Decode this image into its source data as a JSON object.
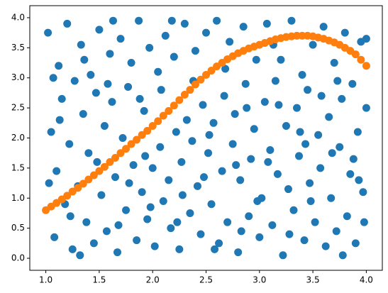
{
  "chart_data": {
    "type": "scatter",
    "xlim": [
      0.85,
      4.15
    ],
    "ylim": [
      -0.2,
      4.2
    ],
    "xticks": [
      {
        "value": 1,
        "label": "1.0"
      },
      1.5,
      {
        "value": 2,
        "label": "2.0"
      },
      2.5,
      {
        "value": 3,
        "label": "3.0"
      },
      3.5,
      {
        "value": 4,
        "label": "4.0"
      }
    ],
    "yticks": [
      {
        "value": 0,
        "label": "0.0"
      },
      0.5,
      {
        "value": 1,
        "label": "1.0"
      },
      1.5,
      {
        "value": 2,
        "label": "2.0"
      },
      2.5,
      {
        "value": 3,
        "label": "3.0"
      },
      3.5,
      {
        "value": 4,
        "label": "4.0"
      }
    ],
    "grid": false,
    "series": [
      {
        "color": "#1f77b4",
        "x": [
          1.02,
          1.05,
          1.08,
          1.1,
          1.12,
          1.15,
          1.18,
          1.2,
          1.22,
          1.25,
          1.27,
          1.3,
          1.33,
          1.35,
          1.38,
          1.4,
          1.42,
          1.45,
          1.47,
          1.5,
          1.52,
          1.55,
          1.57,
          1.6,
          1.62,
          1.65,
          1.67,
          1.7,
          1.72,
          1.75,
          1.77,
          1.8,
          1.82,
          1.85,
          1.87,
          1.9,
          1.92,
          1.95,
          1.97,
          2.0,
          2.02,
          2.05,
          2.07,
          2.1,
          2.12,
          2.15,
          2.17,
          2.2,
          2.22,
          2.25,
          2.27,
          2.3,
          2.32,
          2.35,
          2.37,
          2.4,
          2.42,
          2.45,
          2.47,
          2.5,
          2.52,
          2.55,
          2.57,
          2.6,
          2.62,
          2.65,
          2.67,
          2.7,
          2.72,
          2.75,
          2.77,
          2.8,
          2.82,
          2.85,
          2.87,
          2.9,
          2.92,
          2.95,
          2.97,
          3.0,
          3.02,
          3.05,
          3.07,
          3.1,
          3.12,
          3.15,
          3.17,
          3.2,
          3.22,
          3.25,
          3.27,
          3.3,
          3.32,
          3.35,
          3.37,
          3.4,
          3.42,
          3.45,
          3.47,
          3.5,
          3.52,
          3.55,
          3.57,
          3.6,
          3.62,
          3.65,
          3.67,
          3.7,
          3.72,
          3.75,
          3.77,
          3.8,
          3.82,
          3.85,
          3.87,
          3.9,
          3.92,
          3.95,
          3.97,
          4.0,
          1.03,
          1.13,
          1.23,
          1.36,
          1.48,
          1.58,
          1.68,
          1.78,
          1.88,
          1.98,
          2.08,
          2.18,
          2.28,
          2.38,
          2.48,
          2.58,
          2.68,
          2.78,
          2.88,
          2.98,
          3.08,
          3.18,
          3.28,
          3.38,
          3.48,
          3.58,
          3.68,
          3.78,
          3.88,
          3.98,
          1.07,
          1.32,
          1.63,
          1.93,
          2.23,
          2.53,
          2.83,
          3.13,
          3.43,
          3.73,
          3.93,
          4.0
        ],
        "values": [
          3.75,
          2.1,
          0.35,
          1.45,
          3.2,
          2.65,
          0.9,
          3.9,
          1.9,
          0.15,
          2.95,
          1.2,
          3.55,
          2.4,
          0.6,
          1.75,
          3.05,
          0.25,
          2.75,
          3.8,
          1.05,
          2.2,
          0.45,
          3.4,
          2.6,
          1.35,
          0.1,
          3.65,
          2.0,
          0.8,
          2.85,
          3.25,
          1.55,
          0.3,
          3.95,
          1.1,
          2.45,
          0.65,
          3.5,
          1.5,
          0.2,
          3.1,
          1.85,
          0.95,
          3.7,
          1.3,
          0.5,
          3.35,
          2.1,
          0.15,
          1.6,
          3.9,
          2.3,
          0.75,
          1.95,
          3.45,
          1.2,
          0.4,
          2.55,
          3.75,
          1.75,
          0.9,
          2.25,
          3.95,
          0.25,
          1.45,
          2.7,
          0.6,
          3.6,
          1.9,
          2.4,
          0.1,
          1.3,
          3.85,
          2.9,
          0.7,
          1.65,
          2.15,
          3.3,
          0.35,
          1.0,
          2.6,
          3.9,
          1.8,
          0.55,
          2.95,
          1.4,
          3.3,
          0.05,
          2.2,
          1.15,
          3.95,
          0.8,
          2.5,
          1.7,
          3.05,
          0.3,
          2.8,
          1.25,
          3.55,
          0.6,
          2.05,
          1.5,
          3.85,
          0.2,
          2.35,
          1.0,
          3.25,
          0.45,
          1.85,
          2.65,
          3.75,
          0.7,
          1.4,
          2.9,
          0.25,
          2.1,
          3.6,
          1.1,
          2.5,
          1.25,
          2.3,
          0.7,
          3.3,
          1.6,
          2.9,
          0.55,
          1.25,
          2.65,
          0.85,
          2.8,
          3.95,
          1.05,
          2.95,
          1.35,
          0.15,
          3.15,
          1.55,
          2.5,
          0.95,
          1.6,
          2.55,
          0.4,
          2.1,
          0.95,
          2.7,
          1.75,
          0.05,
          1.65,
          0.6,
          3.0,
          0.05,
          3.95,
          1.7,
          0.6,
          2.05,
          0.45,
          3.55,
          1.9,
          2.95,
          1.3,
          3.65
        ]
      },
      {
        "color": "#ff7f0e",
        "x": [
          1.0,
          1.05,
          1.1,
          1.15,
          1.2,
          1.25,
          1.3,
          1.35,
          1.4,
          1.45,
          1.5,
          1.55,
          1.6,
          1.65,
          1.7,
          1.75,
          1.8,
          1.85,
          1.9,
          1.95,
          2.0,
          2.05,
          2.1,
          2.15,
          2.2,
          2.25,
          2.3,
          2.35,
          2.4,
          2.45,
          2.5,
          2.55,
          2.6,
          2.65,
          2.7,
          2.75,
          2.8,
          2.85,
          2.9,
          2.95,
          3.0,
          3.05,
          3.1,
          3.15,
          3.2,
          3.25,
          3.3,
          3.35,
          3.4,
          3.45,
          3.5,
          3.55,
          3.6,
          3.65,
          3.7,
          3.75,
          3.8,
          3.85,
          3.9,
          3.95,
          4.0
        ],
        "values": [
          0.8,
          0.86,
          0.92,
          0.98,
          1.04,
          1.11,
          1.17,
          1.24,
          1.31,
          1.38,
          1.45,
          1.52,
          1.6,
          1.67,
          1.75,
          1.82,
          1.9,
          1.97,
          2.05,
          2.12,
          2.2,
          2.28,
          2.37,
          2.45,
          2.54,
          2.63,
          2.72,
          2.8,
          2.89,
          2.97,
          3.05,
          3.12,
          3.19,
          3.25,
          3.31,
          3.36,
          3.41,
          3.45,
          3.49,
          3.52,
          3.55,
          3.58,
          3.61,
          3.64,
          3.66,
          3.68,
          3.69,
          3.7,
          3.7,
          3.7,
          3.69,
          3.67,
          3.65,
          3.62,
          3.59,
          3.55,
          3.5,
          3.45,
          3.39,
          3.3,
          3.2
        ]
      }
    ]
  }
}
